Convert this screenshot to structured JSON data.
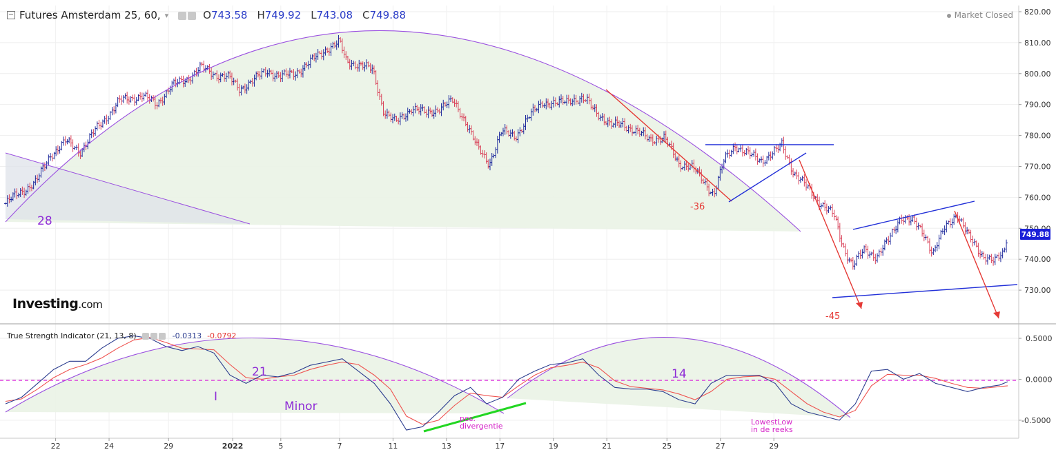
{
  "header": {
    "instrument": "Futures Amsterdam 25, 60,",
    "dropdown_glyph": "▾",
    "ohlc": [
      {
        "label": "O",
        "value": "743.58"
      },
      {
        "label": "H",
        "value": "749.92"
      },
      {
        "label": "L",
        "value": "743.08"
      },
      {
        "label": "C",
        "value": "749.88"
      }
    ],
    "status": "Market Closed"
  },
  "logo": {
    "brand": "Investing",
    "suffix": ".com"
  },
  "indicator": {
    "name": "True Strength Indicator (21, 13, 8)",
    "value1": "-0.0313",
    "value2": "-0.0792"
  },
  "colors": {
    "up_bar": "#1e2a9c",
    "down_bar": "#d9435a",
    "arc": "#9b51e0",
    "arc_fill": "#eaf3e6",
    "trend_red": "#e53935",
    "trend_blue": "#2230d8",
    "tsi_line": "#2c3d8f",
    "signal_line": "#ef5350",
    "zero_line": "#d81bd8",
    "divergence": "#22d622",
    "annotation_purple": "#8e2bd6",
    "annotation_magenta": "#d623c8",
    "last_price_bg": "#1a1fd8"
  },
  "annotations": {
    "n28": "28",
    "n36": "-36",
    "n45": "-45",
    "n21": "21",
    "n14": "14",
    "roman": "I",
    "minor": "Minor",
    "pos_div": [
      "pos.",
      "divergentie"
    ],
    "lowest": [
      "LowestLow",
      "in de reeks"
    ]
  },
  "chart_data": [
    {
      "type": "ohlc",
      "title": "Futures Amsterdam 25, 60,",
      "last_price": "749.88",
      "y_ticks": [
        "730.00",
        "740.00",
        "750.00",
        "760.00",
        "770.00",
        "780.00",
        "790.00",
        "800.00",
        "810.00",
        "820.00"
      ],
      "ylim": [
        720,
        822
      ],
      "x_tick_labels": [
        "22",
        "24",
        "29",
        "2022",
        "5",
        "7",
        "11",
        "13",
        "17",
        "19",
        "21",
        "25",
        "27",
        "29"
      ],
      "close_path": [
        [
          0,
          758
        ],
        [
          1.2,
          762
        ],
        [
          2.3,
          765
        ],
        [
          3.4,
          774
        ],
        [
          4.5,
          778
        ],
        [
          5.6,
          775
        ],
        [
          6.8,
          782
        ],
        [
          8.5,
          791
        ],
        [
          10.2,
          793
        ],
        [
          11.3,
          790
        ],
        [
          12.4,
          796
        ],
        [
          13.5,
          798
        ],
        [
          14.6,
          802
        ],
        [
          15.5,
          800
        ],
        [
          16.6,
          799
        ],
        [
          17.5,
          795
        ],
        [
          18.6,
          798
        ],
        [
          19.6,
          801
        ],
        [
          20.6,
          799
        ],
        [
          21.6,
          800
        ],
        [
          22.6,
          803
        ],
        [
          24.0,
          808
        ],
        [
          25.0,
          810
        ],
        [
          25.5,
          804
        ],
        [
          26.4,
          803
        ],
        [
          27.5,
          801
        ],
        [
          28.3,
          788
        ],
        [
          29.2,
          784
        ],
        [
          30.4,
          789
        ],
        [
          31.5,
          787
        ],
        [
          32.5,
          789
        ],
        [
          33.5,
          791
        ],
        [
          34.4,
          785
        ],
        [
          35.3,
          776
        ],
        [
          36.2,
          771
        ],
        [
          37.1,
          781
        ],
        [
          38.2,
          780
        ],
        [
          39.2,
          786
        ],
        [
          40.2,
          791
        ],
        [
          41.2,
          790
        ],
        [
          42.4,
          792
        ],
        [
          43.5,
          791
        ],
        [
          44.4,
          787
        ],
        [
          45.3,
          783
        ],
        [
          46.2,
          784
        ],
        [
          47.2,
          781
        ],
        [
          48.2,
          779
        ],
        [
          49.3,
          779
        ],
        [
          50.4,
          771
        ],
        [
          51.3,
          770
        ],
        [
          52.3,
          765
        ],
        [
          53.0,
          761
        ],
        [
          53.8,
          772
        ],
        [
          54.6,
          777
        ],
        [
          55.5,
          774
        ],
        [
          56.6,
          772
        ],
        [
          57.7,
          775
        ],
        [
          58.1,
          777
        ],
        [
          59.0,
          768
        ],
        [
          59.8,
          764
        ],
        [
          60.6,
          760
        ],
        [
          61.3,
          757
        ],
        [
          62.0,
          754
        ],
        [
          62.7,
          744
        ],
        [
          63.4,
          738
        ],
        [
          64.3,
          743
        ],
        [
          65.2,
          741
        ],
        [
          66.1,
          746
        ],
        [
          67.0,
          754
        ],
        [
          67.9,
          752
        ],
        [
          68.8,
          748
        ],
        [
          69.4,
          742
        ],
        [
          70.3,
          750
        ],
        [
          71.2,
          755
        ],
        [
          72.1,
          747
        ],
        [
          73.0,
          742
        ],
        [
          74.0,
          739
        ],
        [
          74.7,
          742
        ],
        [
          75.0,
          749
        ]
      ]
    },
    {
      "type": "line",
      "title": "True Strength Indicator (21, 13, 8)",
      "y_ticks": [
        "0.5000",
        "0.0000",
        "-0.5000"
      ],
      "ylim": [
        -0.72,
        0.66
      ],
      "series": [
        {
          "values": [
            [
              0,
              -0.3
            ],
            [
              1.2,
              -0.22
            ],
            [
              2.4,
              -0.05
            ],
            [
              3.6,
              0.12
            ],
            [
              4.8,
              0.22
            ],
            [
              6.0,
              0.22
            ],
            [
              7.2,
              0.38
            ],
            [
              8.4,
              0.5
            ],
            [
              9.6,
              0.53
            ],
            [
              10.8,
              0.5
            ],
            [
              12.0,
              0.4
            ],
            [
              13.2,
              0.35
            ],
            [
              14.4,
              0.4
            ],
            [
              15.6,
              0.32
            ],
            [
              16.8,
              0.05
            ],
            [
              18.0,
              -0.05
            ],
            [
              19.2,
              0.05
            ],
            [
              20.4,
              0.03
            ],
            [
              21.6,
              0.08
            ],
            [
              22.8,
              0.17
            ],
            [
              24.0,
              0.21
            ],
            [
              25.2,
              0.25
            ],
            [
              26.4,
              0.1
            ],
            [
              27.6,
              -0.05
            ],
            [
              28.8,
              -0.3
            ],
            [
              30.0,
              -0.62
            ],
            [
              31.2,
              -0.58
            ],
            [
              32.4,
              -0.4
            ],
            [
              33.6,
              -0.2
            ],
            [
              34.8,
              -0.1
            ],
            [
              36.0,
              -0.3
            ],
            [
              37.2,
              -0.22
            ],
            [
              38.4,
              0.0
            ],
            [
              39.6,
              0.1
            ],
            [
              40.8,
              0.18
            ],
            [
              42.0,
              0.2
            ],
            [
              43.2,
              0.25
            ],
            [
              44.4,
              0.05
            ],
            [
              45.6,
              -0.1
            ],
            [
              46.8,
              -0.12
            ],
            [
              48.0,
              -0.12
            ],
            [
              49.2,
              -0.15
            ],
            [
              50.4,
              -0.25
            ],
            [
              51.6,
              -0.3
            ],
            [
              52.8,
              -0.05
            ],
            [
              54.0,
              0.05
            ],
            [
              55.2,
              0.05
            ],
            [
              56.4,
              0.05
            ],
            [
              57.6,
              -0.05
            ],
            [
              58.8,
              -0.3
            ],
            [
              60.0,
              -0.4
            ],
            [
              61.2,
              -0.45
            ],
            [
              62.4,
              -0.5
            ],
            [
              63.6,
              -0.3
            ],
            [
              64.8,
              0.1
            ],
            [
              66.0,
              0.12
            ],
            [
              67.2,
              0.0
            ],
            [
              68.4,
              0.07
            ],
            [
              69.6,
              -0.05
            ],
            [
              70.8,
              -0.1
            ],
            [
              72.0,
              -0.15
            ],
            [
              73.2,
              -0.1
            ],
            [
              74.4,
              -0.07
            ],
            [
              75.0,
              -0.03
            ]
          ]
        },
        {
          "values": [
            [
              0,
              -0.27
            ],
            [
              1.2,
              -0.24
            ],
            [
              2.4,
              -0.12
            ],
            [
              3.6,
              0.02
            ],
            [
              4.8,
              0.12
            ],
            [
              6.0,
              0.18
            ],
            [
              7.2,
              0.26
            ],
            [
              8.4,
              0.38
            ],
            [
              9.6,
              0.48
            ],
            [
              10.8,
              0.51
            ],
            [
              12.0,
              0.45
            ],
            [
              13.2,
              0.38
            ],
            [
              14.4,
              0.37
            ],
            [
              15.6,
              0.36
            ],
            [
              16.8,
              0.18
            ],
            [
              18.0,
              0.02
            ],
            [
              19.2,
              0.0
            ],
            [
              20.4,
              0.03
            ],
            [
              21.6,
              0.05
            ],
            [
              22.8,
              0.12
            ],
            [
              24.0,
              0.17
            ],
            [
              25.2,
              0.21
            ],
            [
              26.4,
              0.18
            ],
            [
              27.6,
              0.05
            ],
            [
              28.8,
              -0.12
            ],
            [
              30.0,
              -0.45
            ],
            [
              31.2,
              -0.55
            ],
            [
              32.4,
              -0.5
            ],
            [
              33.6,
              -0.32
            ],
            [
              34.8,
              -0.17
            ],
            [
              36.0,
              -0.2
            ],
            [
              37.2,
              -0.22
            ],
            [
              38.4,
              -0.08
            ],
            [
              39.6,
              0.05
            ],
            [
              40.8,
              0.14
            ],
            [
              42.0,
              0.17
            ],
            [
              43.2,
              0.21
            ],
            [
              44.4,
              0.14
            ],
            [
              45.6,
              -0.02
            ],
            [
              46.8,
              -0.09
            ],
            [
              48.0,
              -0.11
            ],
            [
              49.2,
              -0.13
            ],
            [
              50.4,
              -0.18
            ],
            [
              51.6,
              -0.25
            ],
            [
              52.8,
              -0.15
            ],
            [
              54.0,
              0.0
            ],
            [
              55.2,
              0.03
            ],
            [
              56.4,
              0.04
            ],
            [
              57.6,
              0.0
            ],
            [
              58.8,
              -0.15
            ],
            [
              60.0,
              -0.3
            ],
            [
              61.2,
              -0.4
            ],
            [
              62.4,
              -0.46
            ],
            [
              63.6,
              -0.38
            ],
            [
              64.8,
              -0.08
            ],
            [
              66.0,
              0.06
            ],
            [
              67.2,
              0.05
            ],
            [
              68.4,
              0.05
            ],
            [
              69.6,
              0.01
            ],
            [
              70.8,
              -0.05
            ],
            [
              72.0,
              -0.1
            ],
            [
              73.2,
              -0.11
            ],
            [
              74.4,
              -0.09
            ],
            [
              75.0,
              -0.08
            ]
          ]
        }
      ]
    }
  ]
}
